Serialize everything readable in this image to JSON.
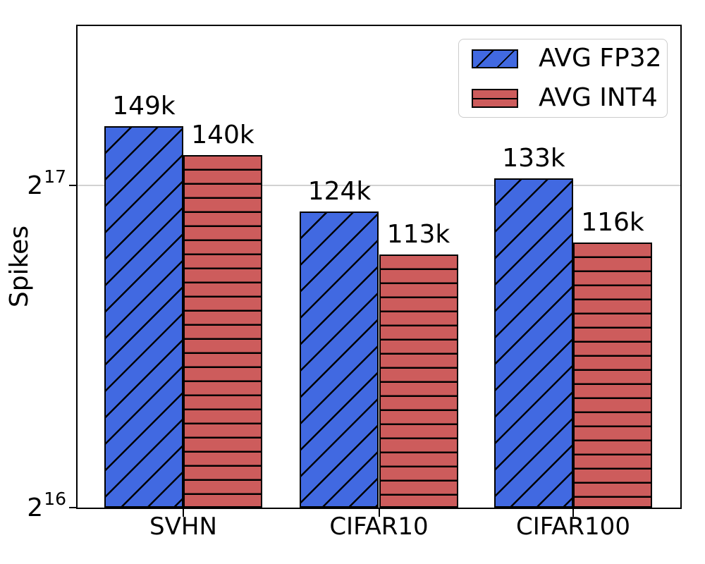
{
  "chart_data": {
    "type": "bar",
    "title": "",
    "xlabel": "",
    "ylabel": "Spikes",
    "yscale": "log2",
    "categories": [
      "SVHN",
      "CIFAR10",
      "CIFAR100"
    ],
    "series": [
      {
        "name": "AVG FP32",
        "color": "#4169e1",
        "hatch": "diagonal",
        "values": [
          149000,
          124000,
          133000
        ],
        "value_labels": [
          "149k",
          "124k",
          "133k"
        ]
      },
      {
        "name": "AVG INT4",
        "color": "#cd5c5c",
        "hatch": "horizontal",
        "values": [
          140000,
          113000,
          116000
        ],
        "value_labels": [
          "140k",
          "113k",
          "116k"
        ]
      }
    ],
    "yticks": [
      {
        "base": "2",
        "exp": "16",
        "value": 65536
      },
      {
        "base": "2",
        "exp": "17",
        "value": 131072
      }
    ],
    "ylim": [
      65536,
      184700
    ],
    "grid": "horizontal-major-only",
    "legend": {
      "position": "upper-right",
      "entries": [
        "AVG FP32",
        "AVG INT4"
      ]
    },
    "group_centers_frac": [
      0.1754,
      0.5,
      0.8222
    ],
    "bar_width_frac": 0.131,
    "colors": {
      "grid": "#d2d2d2",
      "frame": "#000000",
      "bar_edge": "#000000",
      "legend_border": "#cccccc",
      "background": "#ffffff",
      "text": "#000000"
    }
  }
}
